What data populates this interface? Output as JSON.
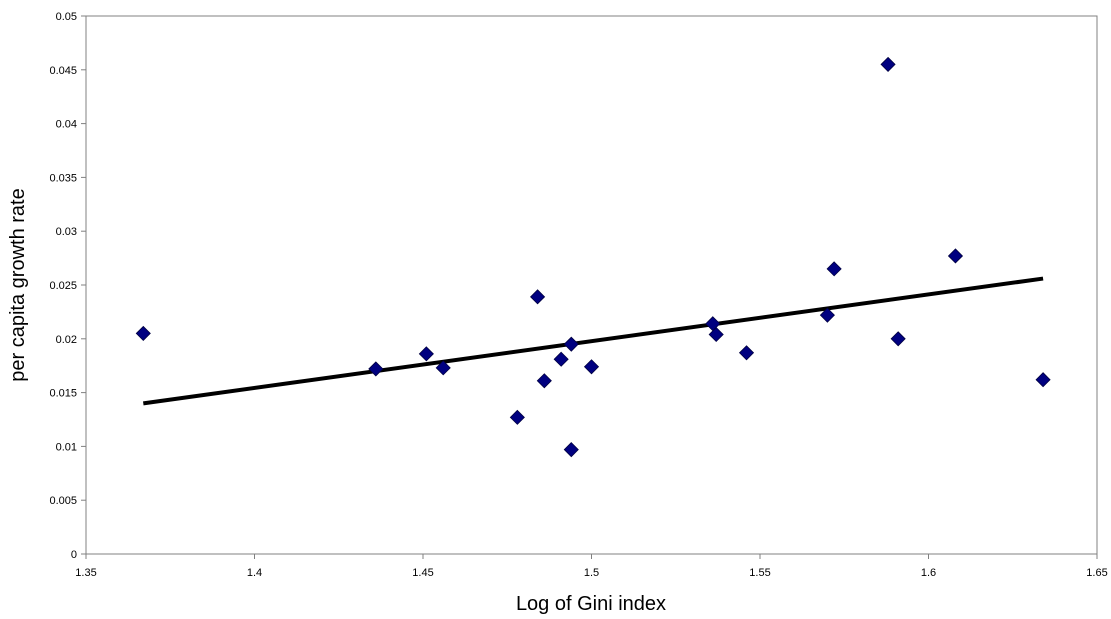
{
  "chart_data": {
    "type": "scatter",
    "xlabel": "Log of Gini index",
    "ylabel": "per capita growth rate",
    "xlim": [
      1.35,
      1.65
    ],
    "ylim": [
      0,
      0.05
    ],
    "x_ticks": [
      "1.35",
      "1.4",
      "1.45",
      "1.5",
      "1.55",
      "1.6",
      "1.65"
    ],
    "y_ticks": [
      "0",
      "0.005",
      "0.01",
      "0.015",
      "0.02",
      "0.025",
      "0.03",
      "0.035",
      "0.04",
      "0.045",
      "0.05"
    ],
    "grid": false,
    "legend": "none",
    "marker_color": "#000080",
    "trendline_color": "#000000",
    "points": [
      {
        "x": 1.367,
        "y": 0.0205
      },
      {
        "x": 1.436,
        "y": 0.0172
      },
      {
        "x": 1.451,
        "y": 0.0186
      },
      {
        "x": 1.456,
        "y": 0.0173
      },
      {
        "x": 1.478,
        "y": 0.0127
      },
      {
        "x": 1.484,
        "y": 0.0239
      },
      {
        "x": 1.486,
        "y": 0.0161
      },
      {
        "x": 1.491,
        "y": 0.0181
      },
      {
        "x": 1.494,
        "y": 0.0195
      },
      {
        "x": 1.494,
        "y": 0.0097
      },
      {
        "x": 1.5,
        "y": 0.0174
      },
      {
        "x": 1.536,
        "y": 0.0214
      },
      {
        "x": 1.537,
        "y": 0.0204
      },
      {
        "x": 1.546,
        "y": 0.0187
      },
      {
        "x": 1.57,
        "y": 0.0222
      },
      {
        "x": 1.572,
        "y": 0.0265
      },
      {
        "x": 1.588,
        "y": 0.0455
      },
      {
        "x": 1.591,
        "y": 0.02
      },
      {
        "x": 1.608,
        "y": 0.0277
      },
      {
        "x": 1.634,
        "y": 0.0162
      }
    ],
    "trendline": [
      {
        "x": 1.367,
        "y": 0.014
      },
      {
        "x": 1.634,
        "y": 0.0256
      }
    ]
  }
}
